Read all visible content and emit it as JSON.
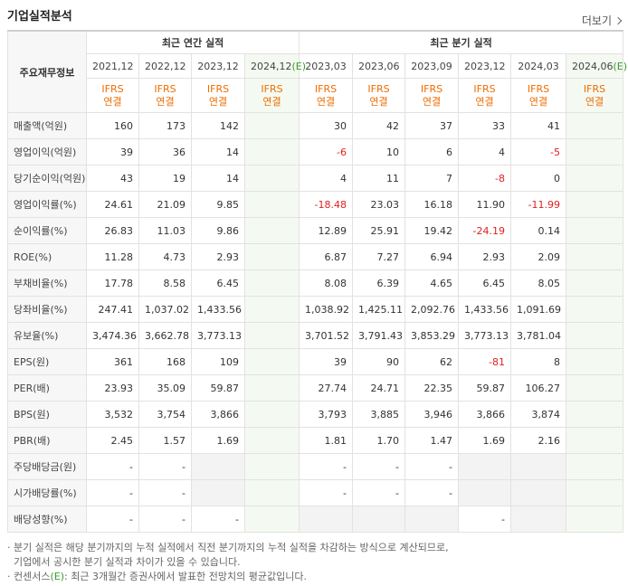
{
  "header": {
    "title": "기업실적분석",
    "more": "더보기"
  },
  "table": {
    "corner": "주요재무정보",
    "groups": [
      {
        "label": "최근 연간 실적",
        "span": 4
      },
      {
        "label": "최근 분기 실적",
        "span": 6
      }
    ],
    "columns": [
      {
        "date": "2021,12",
        "basis": [
          "IFRS",
          "연결"
        ]
      },
      {
        "date": "2022,12",
        "basis": [
          "IFRS",
          "연결"
        ]
      },
      {
        "date": "2023,12",
        "basis": [
          "IFRS",
          "연결"
        ]
      },
      {
        "date": "2024,12",
        "est": "(E)",
        "basis": [
          "IFRS",
          "연결"
        ]
      },
      {
        "date": "2023,03",
        "basis": [
          "IFRS",
          "연결"
        ]
      },
      {
        "date": "2023,06",
        "basis": [
          "IFRS",
          "연결"
        ]
      },
      {
        "date": "2023,09",
        "basis": [
          "IFRS",
          "연결"
        ]
      },
      {
        "date": "2023,12",
        "basis": [
          "IFRS",
          "연결"
        ]
      },
      {
        "date": "2024,03",
        "basis": [
          "IFRS",
          "연결"
        ]
      },
      {
        "date": "2024,06",
        "est": "(E)",
        "basis": [
          "IFRS",
          "연결"
        ]
      }
    ],
    "rows": [
      {
        "label": "매출액(억원)",
        "cells": [
          "160",
          "173",
          "142",
          null,
          "30",
          "42",
          "37",
          "33",
          "41",
          null
        ]
      },
      {
        "label": "영업이익(억원)",
        "cells": [
          "39",
          "36",
          "14",
          null,
          "-6",
          "10",
          "6",
          "4",
          "-5",
          null
        ]
      },
      {
        "label": "당기순이익(억원)",
        "cells": [
          "43",
          "19",
          "14",
          null,
          "4",
          "11",
          "7",
          "-8",
          "0",
          null
        ]
      },
      {
        "label": "영업이익률(%)",
        "cells": [
          "24.61",
          "21.09",
          "9.85",
          null,
          "-18.48",
          "23.03",
          "16.18",
          "11.90",
          "-11.99",
          null
        ]
      },
      {
        "label": "순이익률(%)",
        "cells": [
          "26.83",
          "11.03",
          "9.86",
          null,
          "12.89",
          "25.91",
          "19.42",
          "-24.19",
          "0.14",
          null
        ]
      },
      {
        "label": "ROE(%)",
        "cells": [
          "11.28",
          "4.73",
          "2.93",
          null,
          "6.87",
          "7.27",
          "6.94",
          "2.93",
          "2.09",
          null
        ]
      },
      {
        "label": "부채비율(%)",
        "cells": [
          "17.78",
          "8.58",
          "6.45",
          null,
          "8.08",
          "6.39",
          "4.65",
          "6.45",
          "8.05",
          null
        ]
      },
      {
        "label": "당좌비율(%)",
        "cells": [
          "247.41",
          "1,037.02",
          "1,433.56",
          null,
          "1,038.92",
          "1,425.11",
          "2,092.76",
          "1,433.56",
          "1,091.69",
          null
        ]
      },
      {
        "label": "유보율(%)",
        "cells": [
          "3,474.36",
          "3,662.78",
          "3,773.13",
          null,
          "3,701.52",
          "3,791.43",
          "3,853.29",
          "3,773.13",
          "3,781.04",
          null
        ]
      },
      {
        "label": "EPS(원)",
        "cells": [
          "361",
          "168",
          "109",
          null,
          "39",
          "90",
          "62",
          "-81",
          "8",
          null
        ]
      },
      {
        "label": "PER(배)",
        "cells": [
          "23.93",
          "35.09",
          "59.87",
          null,
          "27.74",
          "24.71",
          "22.35",
          "59.87",
          "106.27",
          null
        ]
      },
      {
        "label": "BPS(원)",
        "cells": [
          "3,532",
          "3,754",
          "3,866",
          null,
          "3,793",
          "3,885",
          "3,946",
          "3,866",
          "3,874",
          null
        ]
      },
      {
        "label": "PBR(배)",
        "cells": [
          "2.45",
          "1.57",
          "1.69",
          null,
          "1.81",
          "1.70",
          "1.47",
          "1.69",
          "2.16",
          null
        ]
      },
      {
        "label": "주당배당금(원)",
        "cells": [
          "-",
          "-",
          null,
          null,
          "-",
          "-",
          "-",
          null,
          null,
          null
        ]
      },
      {
        "label": "시가배당률(%)",
        "cells": [
          "-",
          "-",
          null,
          null,
          "-",
          "-",
          "-",
          null,
          null,
          null
        ]
      },
      {
        "label": "배당성향(%)",
        "cells": [
          "-",
          "-",
          "-",
          null,
          null,
          null,
          null,
          "-",
          null,
          null
        ]
      }
    ],
    "separators_before": [
      3,
      6,
      9,
      13
    ]
  },
  "notes": [
    {
      "parts": [
        "· 분기 실적은 해당 분기까지의 누적 실적에서 직전 분기까지의 누적 실적을 차감하는 방식으로 계산되므로,"
      ]
    },
    {
      "parts": [
        "  기업에서 공시한 분기 실적과 차이가 있을 수 있습니다."
      ]
    },
    {
      "parts": [
        "· 컨센서스",
        "(E)",
        ": 최근 3개월간 증권사에서 발표한 전망치의 평균값입니다."
      ]
    }
  ]
}
